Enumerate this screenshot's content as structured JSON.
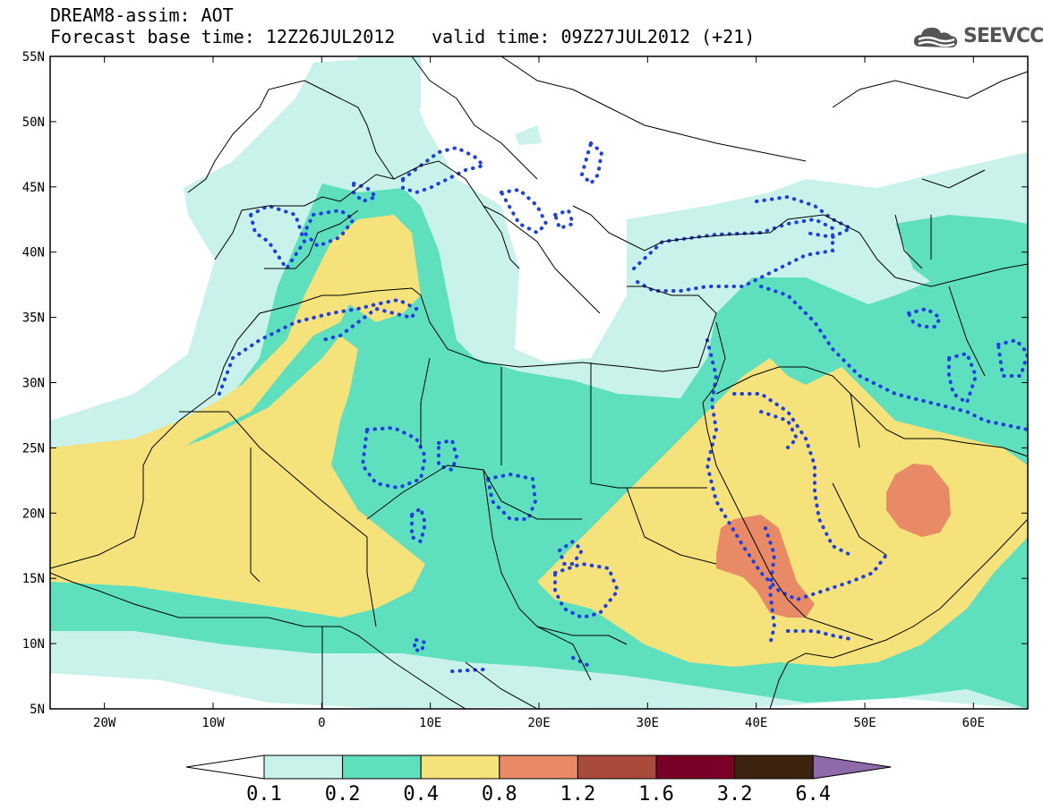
{
  "header": {
    "title": "DREAM8-assim: AOT",
    "base_time": "Forecast base time: 12Z26JUL2012",
    "valid_time": "valid time: 09Z27JUL2012 (+21)",
    "logo_text": "SEEVCCC"
  },
  "map": {
    "lon_range": [
      -25,
      65
    ],
    "lat_range": [
      5,
      55
    ],
    "lon_ticks": [
      "20W",
      "10W",
      "0",
      "10E",
      "20E",
      "30E",
      "40E",
      "50E",
      "60E"
    ],
    "lat_ticks": [
      "55N",
      "50N",
      "45N",
      "40N",
      "35N",
      "30N",
      "25N",
      "20N",
      "15N",
      "10N",
      "5N"
    ],
    "contour_line_color": "#1f3fe0"
  },
  "colorbar": {
    "labels": [
      "0.1",
      "0.2",
      "0.4",
      "0.8",
      "1.2",
      "1.6",
      "3.2",
      "6.4"
    ],
    "colors": [
      "#c8f2ea",
      "#5ee0be",
      "#f5e27a",
      "#e88a66",
      "#a84a3c",
      "#7a0028",
      "#3c2410",
      "#8e6aa8"
    ],
    "left_color": "#ffffff"
  }
}
